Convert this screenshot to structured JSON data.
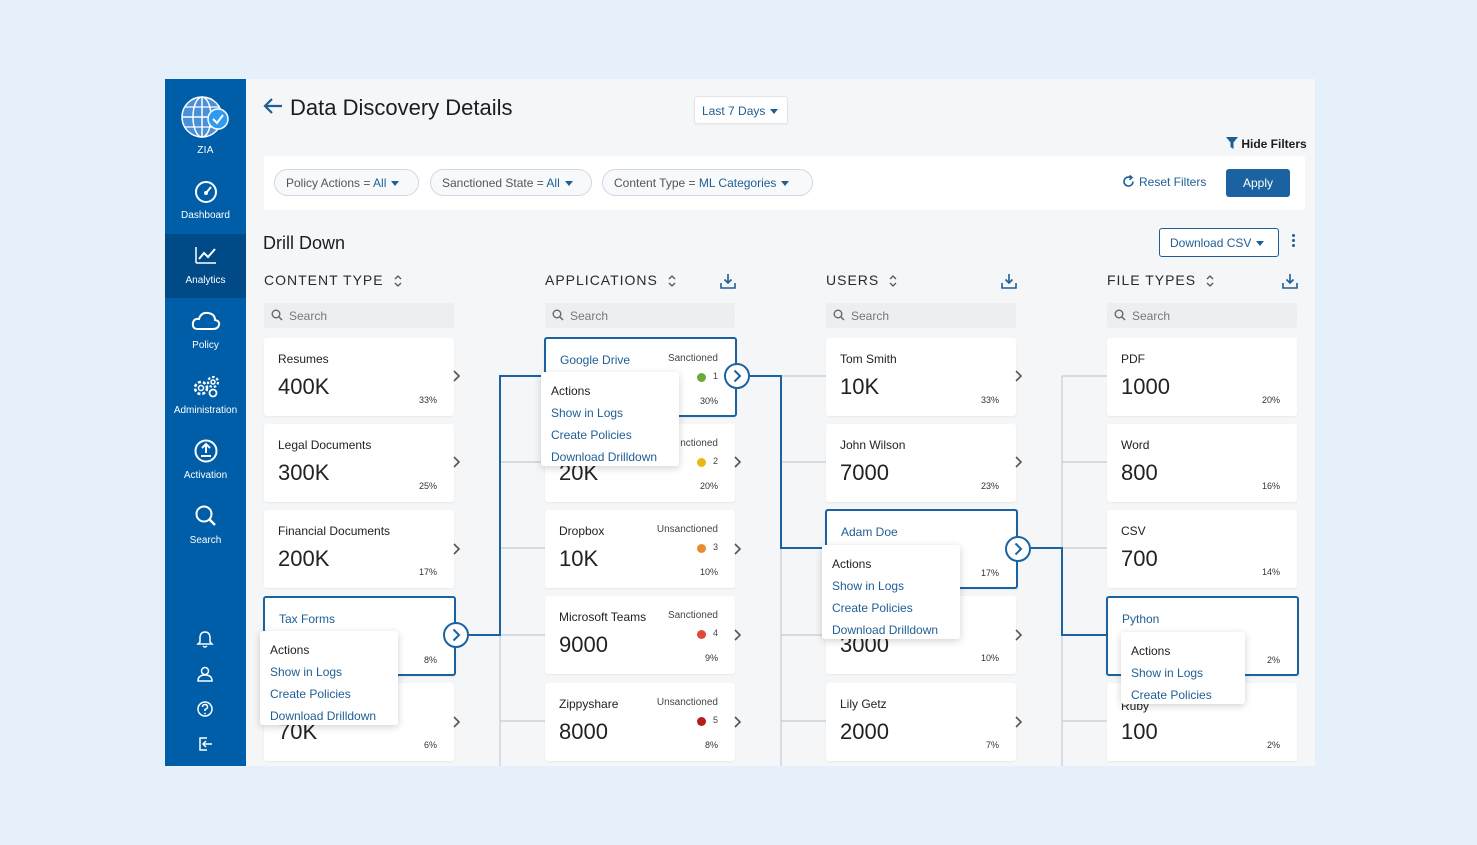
{
  "sidebar": {
    "logo_label": "ZIA",
    "items": [
      {
        "label": "Dashboard",
        "icon": "gauge-icon"
      },
      {
        "label": "Analytics",
        "icon": "chart-icon",
        "active": true
      },
      {
        "label": "Policy",
        "icon": "cloud-icon"
      },
      {
        "label": "Administration",
        "icon": "gears-icon"
      },
      {
        "label": "Activation",
        "icon": "upload-icon"
      },
      {
        "label": "Search",
        "icon": "search-icon"
      }
    ],
    "bottom_icons": [
      "bell-icon",
      "user-icon",
      "help-icon",
      "logout-icon"
    ]
  },
  "header": {
    "title": "Data Discovery Details",
    "date_range": "Last 7 Days",
    "hide_filters": "Hide Filters"
  },
  "filters": {
    "chips": [
      {
        "label": "Policy Actions = ",
        "value": "All"
      },
      {
        "label": "Sanctioned State = ",
        "value": "All"
      },
      {
        "label": "Content Type = ",
        "value": "ML Categories"
      }
    ],
    "reset_label": "Reset Filters",
    "apply_label": "Apply"
  },
  "drill": {
    "title": "Drill Down",
    "download_csv": "Download CSV"
  },
  "columns": {
    "content_type": {
      "header": "CONTENT TYPE",
      "search_placeholder": "Search",
      "cards": [
        {
          "name": "Resumes",
          "value": "400K",
          "pct": "33%"
        },
        {
          "name": "Legal Documents",
          "value": "300K",
          "pct": "25%"
        },
        {
          "name": "Financial Documents",
          "value": "200K",
          "pct": "17%"
        },
        {
          "name": "Tax Forms",
          "value": "",
          "pct": "8%"
        },
        {
          "name": "",
          "value": "70K",
          "pct": "6%"
        }
      ]
    },
    "applications": {
      "header": "APPLICATIONS",
      "search_placeholder": "Search",
      "cards": [
        {
          "name": "Google Drive",
          "status": "Sanctioned",
          "risk": "1",
          "value": "",
          "pct": "30%"
        },
        {
          "name": "",
          "status": "nctioned",
          "risk": "2",
          "value": "20K",
          "pct": "20%"
        },
        {
          "name": "Dropbox",
          "status": "Unsanctioned",
          "risk": "3",
          "value": "10K",
          "pct": "10%"
        },
        {
          "name": "Microsoft Teams",
          "status": "Sanctioned",
          "risk": "4",
          "value": "9000",
          "pct": "9%"
        },
        {
          "name": "Zippyshare",
          "status": "Unsanctioned",
          "risk": "5",
          "value": "8000",
          "pct": "8%"
        }
      ]
    },
    "users": {
      "header": "USERS",
      "search_placeholder": "Search",
      "cards": [
        {
          "name": "Tom Smith",
          "value": "10K",
          "pct": "33%"
        },
        {
          "name": "John Wilson",
          "value": "7000",
          "pct": "23%"
        },
        {
          "name": "Adam Doe",
          "value": "",
          "pct": "17%"
        },
        {
          "name": "",
          "value": "3000",
          "pct": "10%"
        },
        {
          "name": "Lily Getz",
          "value": "2000",
          "pct": "7%"
        }
      ]
    },
    "file_types": {
      "header": "FILE TYPES",
      "search_placeholder": "Search",
      "cards": [
        {
          "name": "PDF",
          "value": "1000",
          "pct": "20%"
        },
        {
          "name": "Word",
          "value": "800",
          "pct": "16%"
        },
        {
          "name": "CSV",
          "value": "700",
          "pct": "14%"
        },
        {
          "name": "Python",
          "value": "",
          "pct": "2%"
        },
        {
          "name": "Ruby",
          "value": "100",
          "pct": "2%"
        }
      ]
    }
  },
  "popups": {
    "header": "Actions",
    "show_logs": "Show in Logs",
    "create_policies": "Create Policies",
    "download_drilldown": "Download Drilldown"
  },
  "colors": {
    "sidebar": "#005ea8",
    "accent": "#1a63a0",
    "risk1": "#6aaa3a",
    "risk2": "#e8b71a",
    "risk3": "#e98b2a",
    "risk4": "#e0483a",
    "risk5": "#b51c1c"
  }
}
